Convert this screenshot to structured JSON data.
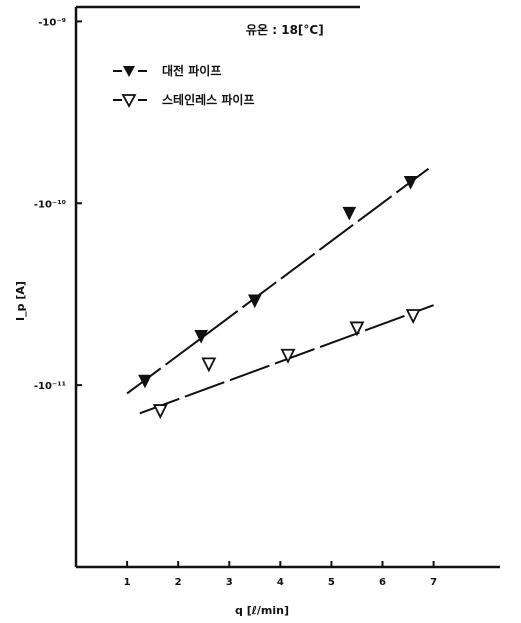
{
  "chart_data": {
    "type": "scatter",
    "title": "유온 : 18[°C]",
    "xlabel": "q [ℓ/min]",
    "ylabel": "I_p [A]",
    "y_scale": "log",
    "xlim": [
      0,
      8.3
    ],
    "ylim": [
      1e-12,
      1.2e-09
    ],
    "x_ticks": [
      1,
      2,
      3,
      4,
      5,
      6,
      7
    ],
    "y_ticks": [
      {
        "value": 1e-09,
        "label": "-10⁻⁹"
      },
      {
        "value": 1e-10,
        "label": "-10⁻¹⁰"
      },
      {
        "value": 1e-11,
        "label": "-10⁻¹¹"
      }
    ],
    "grid": false,
    "legend_position": "top-left",
    "series": [
      {
        "name": "대전 파이프",
        "marker": "filled-triangle-down",
        "color": "#111111",
        "x": [
          1.35,
          2.45,
          3.5,
          5.35,
          6.55
        ],
        "y": [
          1.05e-11,
          1.85e-11,
          2.9e-11,
          8.8e-11,
          1.3e-10
        ],
        "fit": {
          "x": [
            1.0,
            6.9
          ],
          "y": [
            9e-12,
            1.55e-10
          ]
        }
      },
      {
        "name": "스테인레스 파이프",
        "marker": "open-triangle-down",
        "color": "#111111",
        "x": [
          1.65,
          2.6,
          4.15,
          5.5,
          6.6
        ],
        "y": [
          7.2e-12,
          1.3e-11,
          1.45e-11,
          2.05e-11,
          2.4e-11
        ],
        "fit": {
          "x": [
            1.25,
            7.0
          ],
          "y": [
            7e-12,
            2.75e-11
          ]
        }
      }
    ]
  }
}
